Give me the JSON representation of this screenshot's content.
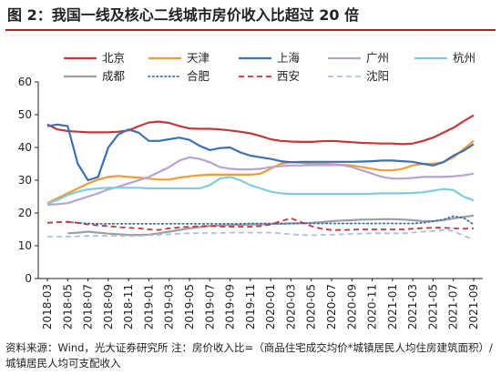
{
  "title": "图 2：我国一线及核心二线城市房价收入比超过 20 倍",
  "source": "资料来源：Wind，光大证券研究所 注：房价收入比=（商品住宅成交均价*城镇居民人均住房建筑面积）/城镇居民人均可支配收入",
  "colors": {
    "title_rule": "#b22222"
  },
  "chart_data": {
    "type": "line",
    "ylim": [
      0,
      60
    ],
    "yticks": [
      0,
      10,
      20,
      30,
      40,
      50,
      60
    ],
    "xlabels": [
      "2018-03",
      "2018-05",
      "2018-07",
      "2018-09",
      "2018-11",
      "2019-01",
      "2019-03",
      "2019-05",
      "2019-07",
      "2019-09",
      "2019-11",
      "2020-01",
      "2020-03",
      "2020-05",
      "2020-07",
      "2020-09",
      "2020-11",
      "2021-01",
      "2021-03",
      "2021-05",
      "2021-07",
      "2021-09"
    ],
    "x": [
      "2018-03",
      "2018-04",
      "2018-05",
      "2018-06",
      "2018-07",
      "2018-08",
      "2018-09",
      "2018-10",
      "2018-11",
      "2018-12",
      "2019-01",
      "2019-02",
      "2019-03",
      "2019-04",
      "2019-05",
      "2019-06",
      "2019-07",
      "2019-08",
      "2019-09",
      "2019-10",
      "2019-11",
      "2019-12",
      "2020-01",
      "2020-02",
      "2020-03",
      "2020-04",
      "2020-05",
      "2020-06",
      "2020-07",
      "2020-08",
      "2020-09",
      "2020-10",
      "2020-11",
      "2020-12",
      "2021-01",
      "2021-02",
      "2021-03",
      "2021-04",
      "2021-05",
      "2021-06",
      "2021-07",
      "2021-08",
      "2021-09"
    ],
    "series": [
      {
        "name": "北京",
        "color": "#c0393b",
        "style": "solid",
        "values": [
          47,
          45.5,
          45,
          44.8,
          44.6,
          44.6,
          44.6,
          44.8,
          45.2,
          46.5,
          47.6,
          47.9,
          47.5,
          46.5,
          45.8,
          45.7,
          45.7,
          45.5,
          45.2,
          44.8,
          44.3,
          43.5,
          42.5,
          42.0,
          41.8,
          41.7,
          41.7,
          41.9,
          42.0,
          41.8,
          41.6,
          41.4,
          41.3,
          41.2,
          41.2,
          41.0,
          41.2,
          42.0,
          43.0,
          44.5,
          46.0,
          48.0,
          49.8
        ]
      },
      {
        "name": "天津",
        "color": "#f39b35",
        "style": "solid",
        "values": [
          23,
          24.5,
          26,
          27.5,
          29,
          30.2,
          31,
          31.3,
          31.0,
          30.8,
          30.5,
          30.2,
          30.2,
          30.8,
          31.2,
          31.5,
          31.7,
          31.7,
          31.7,
          31.7,
          31.7,
          32.0,
          33.5,
          35.0,
          35.5,
          35.3,
          35.0,
          35.0,
          34.9,
          34.7,
          34.5,
          34.0,
          33.5,
          33.0,
          33.0,
          33.5,
          34.5,
          35.0,
          35.0,
          35.5,
          37.0,
          39.5,
          42.0
        ]
      },
      {
        "name": "上海",
        "color": "#3e6fb0",
        "style": "solid",
        "values": [
          46.5,
          47,
          46.5,
          35,
          30,
          31,
          40,
          44,
          45.5,
          44.5,
          42,
          42,
          42.5,
          43,
          42.3,
          40.5,
          39.2,
          39.8,
          40,
          38.5,
          37.5,
          37,
          36.5,
          35.8,
          35.5,
          35.6,
          35.6,
          35.6,
          35.6,
          35.6,
          35.6,
          35.7,
          35.8,
          36.0,
          36.0,
          35.8,
          35.6,
          35.0,
          34.5,
          35.5,
          37.5,
          39.0,
          41.0
        ]
      },
      {
        "name": "广州",
        "color": "#b6a3d3",
        "style": "solid",
        "values": [
          22.5,
          22.7,
          23.0,
          24.0,
          25.0,
          26.0,
          27.2,
          28.0,
          29.0,
          30.0,
          31.0,
          32.5,
          34.0,
          36.0,
          37.0,
          36.5,
          35.5,
          34.0,
          33.5,
          33.3,
          33.3,
          33.5,
          34.0,
          34.3,
          34.5,
          34.5,
          34.6,
          34.6,
          34.6,
          34.6,
          34.0,
          33.0,
          32.0,
          31.0,
          30.5,
          30.5,
          30.7,
          31.0,
          31.0,
          31.0,
          31.2,
          31.5,
          32.0
        ]
      },
      {
        "name": "杭州",
        "color": "#7fcbe0",
        "style": "solid",
        "values": [
          22.8,
          24.0,
          25.5,
          26.5,
          27.2,
          27.5,
          27.7,
          27.7,
          27.7,
          27.7,
          27.5,
          27.5,
          27.5,
          27.5,
          27.5,
          27.5,
          28.5,
          30.5,
          31.0,
          30.0,
          28.5,
          27.5,
          26.5,
          26.0,
          25.8,
          25.8,
          25.8,
          25.8,
          25.8,
          25.8,
          25.8,
          25.8,
          25.9,
          26.0,
          26.0,
          26.0,
          26.1,
          26.3,
          26.8,
          27.3,
          27.0,
          25.0,
          23.8
        ]
      },
      {
        "name": "成都",
        "color": "#9e9e9e",
        "style": "solid",
        "values": [
          null,
          null,
          13.8,
          14.0,
          14.3,
          14.0,
          13.7,
          13.5,
          13.3,
          13.3,
          13.4,
          13.8,
          14.3,
          14.8,
          15.3,
          15.7,
          16.0,
          16.2,
          16.3,
          16.4,
          16.5,
          16.5,
          16.6,
          16.7,
          16.8,
          16.9,
          17.0,
          17.2,
          17.5,
          17.7,
          17.8,
          18.0,
          18.0,
          18.1,
          18.1,
          18.0,
          17.8,
          17.5,
          17.5,
          17.8,
          18.3,
          18.8,
          19.2
        ]
      },
      {
        "name": "合肥",
        "color": "#3e6fb0",
        "style": "dotted",
        "values": [
          null,
          null,
          17.2,
          17.0,
          16.8,
          16.7,
          16.7,
          16.7,
          16.7,
          16.7,
          16.7,
          16.7,
          16.7,
          16.7,
          16.7,
          16.7,
          16.7,
          16.7,
          16.7,
          16.7,
          16.8,
          16.8,
          16.8,
          16.8,
          16.8,
          16.8,
          16.8,
          16.8,
          16.8,
          16.8,
          16.8,
          16.8,
          16.8,
          16.8,
          16.8,
          16.8,
          16.8,
          17.0,
          17.5,
          18.0,
          19.0,
          18.5,
          16.5
        ]
      },
      {
        "name": "西安",
        "color": "#c0393b",
        "style": "dashed",
        "values": [
          17.0,
          17.2,
          17.3,
          17.0,
          16.5,
          16.2,
          16.0,
          15.7,
          15.5,
          15.3,
          15.0,
          14.8,
          15.3,
          15.6,
          15.8,
          16.0,
          16.0,
          15.9,
          15.8,
          15.8,
          15.8,
          16.0,
          16.5,
          17.5,
          18.4,
          17.2,
          16.0,
          15.2,
          14.8,
          14.8,
          14.9,
          15.0,
          15.0,
          15.0,
          15.0,
          15.0,
          15.2,
          15.4,
          15.5,
          15.5,
          15.3,
          15.2,
          15.3
        ]
      },
      {
        "name": "沈阳",
        "color": "#a9c2e2",
        "style": "dashed",
        "values": [
          12.8,
          12.8,
          12.8,
          12.9,
          13.0,
          13.0,
          13.0,
          13.0,
          13.0,
          13.0,
          13.2,
          13.3,
          13.5,
          13.7,
          13.8,
          13.9,
          13.9,
          13.9,
          14.0,
          14.0,
          14.0,
          14.0,
          14.0,
          13.8,
          13.5,
          13.3,
          13.2,
          13.3,
          13.4,
          13.5,
          13.6,
          13.7,
          13.8,
          13.8,
          13.8,
          13.8,
          14.0,
          14.3,
          14.5,
          14.8,
          14.5,
          13.0,
          12.0
        ]
      }
    ]
  }
}
